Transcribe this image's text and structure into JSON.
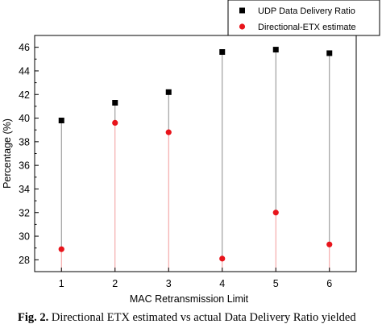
{
  "chart_data": {
    "type": "scatter",
    "xlabel": "MAC Retransmission Limit",
    "ylabel": "Percentage (%)",
    "x": [
      1,
      2,
      3,
      4,
      5,
      6
    ],
    "xlim": [
      0.5,
      6.5
    ],
    "ylim": [
      27,
      47
    ],
    "yticks": [
      28,
      30,
      32,
      34,
      36,
      38,
      40,
      42,
      44,
      46
    ],
    "series": [
      {
        "name": "UDP Data Delivery Ratio",
        "marker": "square",
        "color": "#000000",
        "values": [
          39.8,
          41.3,
          42.2,
          45.6,
          45.8,
          45.5
        ]
      },
      {
        "name": "Directional-ETX estimate",
        "marker": "circle",
        "color": "#e8141b",
        "values": [
          28.9,
          39.6,
          38.8,
          28.1,
          32.0,
          29.3
        ]
      }
    ],
    "drop_lines": true,
    "legend_position": "top-right"
  },
  "caption": {
    "label": "Fig. 2.",
    "text": " Directional ETX estimated vs actual Data Delivery Ratio yielded"
  }
}
